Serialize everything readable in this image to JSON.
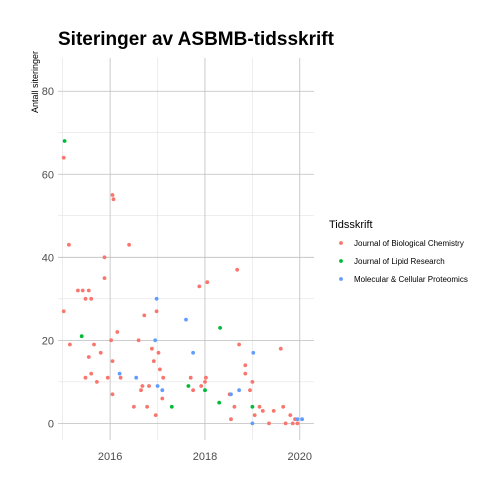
{
  "chart_data": {
    "type": "scatter",
    "title": "Siteringer av ASBMB-tidsskrift",
    "xlabel": "",
    "ylabel": "Antall siteringer",
    "xlim": [
      2014.9,
      2020.3
    ],
    "ylim": [
      -4,
      88
    ],
    "x_ticks": [
      2016,
      2018,
      2020
    ],
    "y_ticks": [
      0,
      20,
      40,
      60,
      80
    ],
    "grid": true,
    "legend": {
      "title": "Tidsskrift",
      "position": "right"
    },
    "series": [
      {
        "name": "Journal of Biological Chemistry",
        "color": "#F8766D",
        "points": [
          [
            2015.02,
            64
          ],
          [
            2015.02,
            27
          ],
          [
            2015.13,
            43
          ],
          [
            2015.15,
            19
          ],
          [
            2015.32,
            32
          ],
          [
            2015.42,
            32
          ],
          [
            2015.48,
            11
          ],
          [
            2015.48,
            30
          ],
          [
            2015.55,
            16
          ],
          [
            2015.55,
            32
          ],
          [
            2015.6,
            12
          ],
          [
            2015.6,
            30
          ],
          [
            2015.66,
            19
          ],
          [
            2015.72,
            10
          ],
          [
            2015.8,
            17
          ],
          [
            2015.88,
            40
          ],
          [
            2015.88,
            35
          ],
          [
            2015.95,
            11
          ],
          [
            2016.05,
            55
          ],
          [
            2016.07,
            54
          ],
          [
            2016.02,
            20
          ],
          [
            2016.05,
            15
          ],
          [
            2016.05,
            7
          ],
          [
            2016.15,
            22
          ],
          [
            2016.22,
            11
          ],
          [
            2016.4,
            43
          ],
          [
            2016.5,
            4
          ],
          [
            2016.6,
            20
          ],
          [
            2016.65,
            8
          ],
          [
            2016.68,
            9
          ],
          [
            2016.72,
            26
          ],
          [
            2016.78,
            4
          ],
          [
            2016.82,
            9
          ],
          [
            2016.88,
            18
          ],
          [
            2016.92,
            15
          ],
          [
            2016.96,
            2
          ],
          [
            2016.98,
            27
          ],
          [
            2017.02,
            17
          ],
          [
            2017.05,
            13
          ],
          [
            2017.1,
            6
          ],
          [
            2017.12,
            11
          ],
          [
            2017.7,
            11
          ],
          [
            2017.75,
            8
          ],
          [
            2017.88,
            33
          ],
          [
            2017.92,
            9
          ],
          [
            2018.0,
            10
          ],
          [
            2018.02,
            11
          ],
          [
            2018.05,
            34
          ],
          [
            2018.52,
            7
          ],
          [
            2018.55,
            1
          ],
          [
            2018.62,
            4
          ],
          [
            2018.68,
            37
          ],
          [
            2018.72,
            19
          ],
          [
            2018.85,
            14
          ],
          [
            2018.85,
            12
          ],
          [
            2018.95,
            8
          ],
          [
            2019.0,
            10
          ],
          [
            2019.05,
            2
          ],
          [
            2019.15,
            4
          ],
          [
            2019.22,
            3
          ],
          [
            2019.35,
            0
          ],
          [
            2019.45,
            3
          ],
          [
            2019.6,
            18
          ],
          [
            2019.65,
            4
          ],
          [
            2019.7,
            0
          ],
          [
            2019.8,
            2
          ],
          [
            2019.85,
            0
          ],
          [
            2019.9,
            1
          ],
          [
            2019.95,
            0
          ]
        ]
      },
      {
        "name": "Journal of Lipid Research",
        "color": "#00BA38",
        "points": [
          [
            2015.04,
            68
          ],
          [
            2015.4,
            21
          ],
          [
            2017.3,
            4
          ],
          [
            2017.65,
            9
          ],
          [
            2018.0,
            8
          ],
          [
            2018.3,
            5
          ],
          [
            2018.32,
            23
          ],
          [
            2019.0,
            4
          ]
        ]
      },
      {
        "name": "Molecular & Cellular Proteomics",
        "color": "#619CFF",
        "points": [
          [
            2016.2,
            12
          ],
          [
            2016.55,
            11
          ],
          [
            2016.95,
            20
          ],
          [
            2016.98,
            30
          ],
          [
            2017.0,
            9
          ],
          [
            2017.1,
            8
          ],
          [
            2017.6,
            25
          ],
          [
            2017.75,
            17
          ],
          [
            2018.55,
            7
          ],
          [
            2018.72,
            8
          ],
          [
            2019.0,
            0
          ],
          [
            2019.02,
            17
          ],
          [
            2019.95,
            1
          ],
          [
            2020.05,
            1
          ]
        ]
      }
    ]
  }
}
